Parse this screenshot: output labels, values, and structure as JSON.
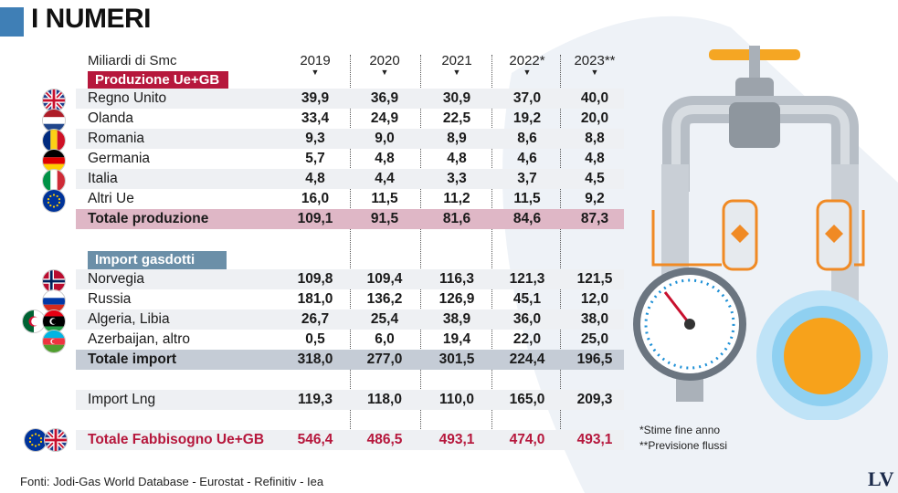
{
  "title": "I NUMERI",
  "unit_label": "Miliardi di Smc",
  "years": [
    "2019",
    "2020",
    "2021",
    "2022*",
    "2023**"
  ],
  "sections": {
    "production_tag": "Produzione Ue+GB",
    "import_tag": "Import gasdotti"
  },
  "rows": {
    "regno_unito": {
      "label": "Regno Unito",
      "values": [
        "39,9",
        "36,9",
        "30,9",
        "37,0",
        "40,0"
      ]
    },
    "olanda": {
      "label": "Olanda",
      "values": [
        "33,4",
        "24,9",
        "22,5",
        "19,2",
        "20,0"
      ]
    },
    "romania": {
      "label": "Romania",
      "values": [
        "9,3",
        "9,0",
        "8,9",
        "8,6",
        "8,8"
      ]
    },
    "germania": {
      "label": "Germania",
      "values": [
        "5,7",
        "4,8",
        "4,8",
        "4,6",
        "4,8"
      ]
    },
    "italia": {
      "label": "Italia",
      "values": [
        "4,8",
        "4,4",
        "3,3",
        "3,7",
        "4,5"
      ]
    },
    "altri_ue": {
      "label": "Altri Ue",
      "values": [
        "16,0",
        "11,5",
        "11,2",
        "11,5",
        "9,2"
      ]
    },
    "totale_produzione": {
      "label": "Totale produzione",
      "values": [
        "109,1",
        "91,5",
        "81,6",
        "84,6",
        "87,3"
      ]
    },
    "norvegia": {
      "label": "Norvegia",
      "values": [
        "109,8",
        "109,4",
        "116,3",
        "121,3",
        "121,5"
      ]
    },
    "russia": {
      "label": "Russia",
      "values": [
        "181,0",
        "136,2",
        "126,9",
        "45,1",
        "12,0"
      ]
    },
    "algeria_libia": {
      "label": "Algeria, Libia",
      "values": [
        "26,7",
        "25,4",
        "38,9",
        "36,0",
        "38,0"
      ]
    },
    "azerbaijan": {
      "label": "Azerbaijan, altro",
      "values": [
        "0,5",
        "6,0",
        "19,4",
        "22,0",
        "25,0"
      ]
    },
    "totale_import": {
      "label": "Totale import",
      "values": [
        "318,0",
        "277,0",
        "301,5",
        "224,4",
        "196,5"
      ]
    },
    "import_lng": {
      "label": "Import Lng",
      "values": [
        "119,3",
        "118,0",
        "110,0",
        "165,0",
        "209,3"
      ]
    },
    "totale_fabbisogno": {
      "label": "Totale Fabbisogno Ue+GB",
      "values": [
        "546,4",
        "486,5",
        "493,1",
        "474,0",
        "493,1"
      ]
    }
  },
  "notes": {
    "estimate": "*Stime fine anno",
    "forecast": "**Previsione flussi"
  },
  "sources": "Fonti: Jodi-Gas World Database - Eurostat - Refinitiv - Iea",
  "logo": "LV",
  "colors": {
    "accent_red": "#b6173c",
    "accent_blue": "#6b8fa8",
    "total_pink": "#dfb7c6",
    "total_blue": "#c5ccd6",
    "title_bar": "#3f7fb6"
  },
  "chart_data": {
    "type": "table",
    "columns": [
      "2019",
      "2020",
      "2021",
      "2022*",
      "2023**"
    ],
    "unit": "Miliardi di Smc",
    "groups": [
      {
        "name": "Produzione Ue+GB",
        "rows": [
          "Regno Unito",
          "Olanda",
          "Romania",
          "Germania",
          "Italia",
          "Altri Ue",
          "Totale produzione"
        ]
      },
      {
        "name": "Import gasdotti",
        "rows": [
          "Norvegia",
          "Russia",
          "Algeria, Libia",
          "Azerbaijan, altro",
          "Totale import"
        ]
      },
      {
        "name": "",
        "rows": [
          "Import Lng",
          "Totale Fabbisogno Ue+GB"
        ]
      }
    ],
    "series": [
      {
        "name": "Regno Unito",
        "values": [
          39.9,
          36.9,
          30.9,
          37.0,
          40.0
        ]
      },
      {
        "name": "Olanda",
        "values": [
          33.4,
          24.9,
          22.5,
          19.2,
          20.0
        ]
      },
      {
        "name": "Romania",
        "values": [
          9.3,
          9.0,
          8.9,
          8.6,
          8.8
        ]
      },
      {
        "name": "Germania",
        "values": [
          5.7,
          4.8,
          4.8,
          4.6,
          4.8
        ]
      },
      {
        "name": "Italia",
        "values": [
          4.8,
          4.4,
          3.3,
          3.7,
          4.5
        ]
      },
      {
        "name": "Altri Ue",
        "values": [
          16.0,
          11.5,
          11.2,
          11.5,
          9.2
        ]
      },
      {
        "name": "Totale produzione",
        "values": [
          109.1,
          91.5,
          81.6,
          84.6,
          87.3
        ]
      },
      {
        "name": "Norvegia",
        "values": [
          109.8,
          109.4,
          116.3,
          121.3,
          121.5
        ]
      },
      {
        "name": "Russia",
        "values": [
          181.0,
          136.2,
          126.9,
          45.1,
          12.0
        ]
      },
      {
        "name": "Algeria, Libia",
        "values": [
          26.7,
          25.4,
          38.9,
          36.0,
          38.0
        ]
      },
      {
        "name": "Azerbaijan, altro",
        "values": [
          0.5,
          6.0,
          19.4,
          22.0,
          25.0
        ]
      },
      {
        "name": "Totale import",
        "values": [
          318.0,
          277.0,
          301.5,
          224.4,
          196.5
        ]
      },
      {
        "name": "Import Lng",
        "values": [
          119.3,
          118.0,
          110.0,
          165.0,
          209.3
        ]
      },
      {
        "name": "Totale Fabbisogno Ue+GB",
        "values": [
          546.4,
          486.5,
          493.1,
          474.0,
          493.1
        ]
      }
    ]
  }
}
